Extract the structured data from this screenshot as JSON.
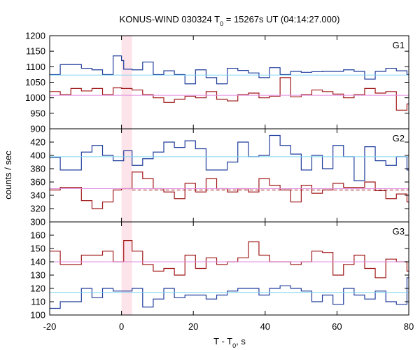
{
  "chart_data": {
    "type": "line",
    "title_prefix": "KONUS-WIND 030324 T",
    "title_sub": "0",
    "title_suffix": " = 15267s UT (04:14:27.000)",
    "xlabel_prefix": "T - T",
    "xlabel_sub": "0",
    "xlabel_suffix": ", s",
    "ylabel": "counts / sec",
    "xlim": [
      -20,
      80
    ],
    "xticks": [
      "-20",
      "0",
      "20",
      "40",
      "60",
      "80"
    ],
    "highlight_x": [
      0,
      2.944
    ],
    "bin_edges": [
      -20,
      -17.056,
      -14.112,
      -11.168,
      -8.224,
      -5.28,
      -2.336,
      0,
      0.608,
      2.944,
      5.888,
      8.832,
      11.776,
      14.72,
      17.664,
      20.608,
      23.552,
      26.496,
      29.44,
      32.384,
      35.328,
      38.272,
      41.216,
      44.16,
      47.104,
      50.048,
      52.992,
      55.936,
      58.88,
      61.824,
      64.768,
      67.712,
      70.656,
      73.6,
      76.544,
      79.488,
      80
    ],
    "colors": {
      "blue_series": "#1f3c9c",
      "red_series": "#a01818",
      "blue_background": "#7fd6f0",
      "red_background": "#e08ce0",
      "dashed_line": "#a01818",
      "highlight": "#fde4ea"
    },
    "panels": [
      {
        "label": "G1",
        "ylim": [
          900,
          1200
        ],
        "yticks": [
          "900",
          "950",
          "1000",
          "1050",
          "1100",
          "1150",
          "1200"
        ],
        "series": [
          {
            "color_key": "blue_series",
            "values": [
              1075,
              1107,
              1107,
              1095,
              1090,
              1075,
              1135,
              1120,
              1092,
              1090,
              1115,
              1075,
              1087,
              1075,
              1045,
              1090,
              1065,
              1045,
              1095,
              1088,
              1080,
              1065,
              1097,
              1075,
              1085,
              1082,
              1084,
              1085,
              1085,
              1090,
              1085,
              1060,
              1085,
              1095,
              1087,
              1075
            ]
          },
          {
            "color_key": "red_series",
            "values": [
              1020,
              1010,
              1030,
              1022,
              1030,
              1010,
              1032,
              1030,
              1030,
              1025,
              1010,
              1000,
              985,
              995,
              1005,
              1000,
              1020,
              995,
              990,
              1010,
              1015,
              1000,
              1005,
              1065,
              1003,
              1010,
              1025,
              1020,
              1012,
              1000,
              1010,
              1030,
              1015,
              1020,
              960,
              980
            ]
          },
          {
            "color_key": "blue_background",
            "constant": 1073
          },
          {
            "color_key": "red_background",
            "constant": 1008
          }
        ]
      },
      {
        "label": "G2",
        "ylim": [
          300,
          440
        ],
        "yticks": [
          "300",
          "320",
          "340",
          "360",
          "380",
          "400",
          "420"
        ],
        "series": [
          {
            "color_key": "blue_series",
            "values": [
              397,
              378,
              378,
              405,
              415,
              400,
              392,
              392,
              407,
              385,
              395,
              405,
              420,
              412,
              422,
              410,
              378,
              378,
              390,
              420,
              398,
              400,
              430,
              415,
              402,
              378,
              400,
              380,
              415,
              398,
              362,
              413,
              392,
              385,
              398,
              378
            ]
          },
          {
            "color_key": "red_series",
            "values": [
              348,
              352,
              352,
              332,
              320,
              330,
              348,
              350,
              350,
              375,
              365,
              350,
              345,
              335,
              358,
              345,
              365,
              350,
              345,
              350,
              345,
              365,
              355,
              348,
              330,
              355,
              343,
              348,
              358,
              352,
              352,
              360,
              347,
              335,
              342,
              330
            ]
          },
          {
            "color_key": "blue_background",
            "constant": 398
          },
          {
            "color_key": "red_background",
            "constant": 350
          },
          {
            "color_key": "dashed_line",
            "constant": 348,
            "dashed": true,
            "start": 2.944
          }
        ]
      },
      {
        "label": "G3",
        "ylim": [
          100,
          170
        ],
        "yticks": [
          "100",
          "110",
          "120",
          "130",
          "140",
          "150",
          "160"
        ],
        "series": [
          {
            "color_key": "blue_series",
            "values": [
              105,
              110,
              110,
              120,
              113,
              120,
              118,
              118,
              118,
              120,
              106,
              112,
              120,
              113,
              115,
              115,
              112,
              115,
              118,
              120,
              120,
              115,
              120,
              122,
              120,
              118,
              110,
              115,
              108,
              120,
              115,
              112,
              118,
              110,
              108,
              128
            ]
          },
          {
            "color_key": "red_series",
            "values": [
              148,
              138,
              138,
              145,
              145,
              148,
              140,
              140,
              156,
              148,
              138,
              133,
              135,
              130,
              145,
              135,
              143,
              138,
              140,
              143,
              155,
              145,
              140,
              140,
              138,
              140,
              148,
              147,
              130,
              138,
              145,
              135,
              128,
              142,
              140,
              133
            ]
          },
          {
            "color_key": "blue_background",
            "constant": 117
          },
          {
            "color_key": "red_background",
            "constant": 140
          }
        ]
      }
    ]
  }
}
